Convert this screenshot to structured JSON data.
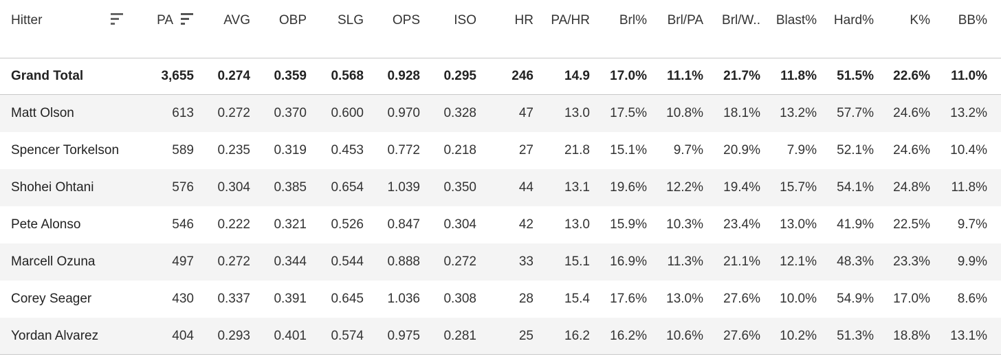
{
  "table": {
    "columns": [
      "Hitter",
      "PA",
      "AVG",
      "OBP",
      "SLG",
      "OPS",
      "ISO",
      "HR",
      "PA/HR",
      "Brl%",
      "Brl/PA",
      "Brl/W..",
      "Blast%",
      "Hard%",
      "K%",
      "BB%"
    ],
    "total": [
      "Grand Total",
      "3,655",
      "0.274",
      "0.359",
      "0.568",
      "0.928",
      "0.295",
      "246",
      "14.9",
      "17.0%",
      "11.1%",
      "21.7%",
      "11.8%",
      "51.5%",
      "22.6%",
      "11.0%"
    ],
    "rows": [
      [
        "Matt Olson",
        "613",
        "0.272",
        "0.370",
        "0.600",
        "0.970",
        "0.328",
        "47",
        "13.0",
        "17.5%",
        "10.8%",
        "18.1%",
        "13.2%",
        "57.7%",
        "24.6%",
        "13.2%"
      ],
      [
        "Spencer Torkelson",
        "589",
        "0.235",
        "0.319",
        "0.453",
        "0.772",
        "0.218",
        "27",
        "21.8",
        "15.1%",
        "9.7%",
        "20.9%",
        "7.9%",
        "52.1%",
        "24.6%",
        "10.4%"
      ],
      [
        "Shohei Ohtani",
        "576",
        "0.304",
        "0.385",
        "0.654",
        "1.039",
        "0.350",
        "44",
        "13.1",
        "19.6%",
        "12.2%",
        "19.4%",
        "15.7%",
        "54.1%",
        "24.8%",
        "11.8%"
      ],
      [
        "Pete Alonso",
        "546",
        "0.222",
        "0.321",
        "0.526",
        "0.847",
        "0.304",
        "42",
        "13.0",
        "15.9%",
        "10.3%",
        "23.4%",
        "13.0%",
        "41.9%",
        "22.5%",
        "9.7%"
      ],
      [
        "Marcell Ozuna",
        "497",
        "0.272",
        "0.344",
        "0.544",
        "0.888",
        "0.272",
        "33",
        "15.1",
        "16.9%",
        "11.3%",
        "21.1%",
        "12.1%",
        "48.3%",
        "23.3%",
        "9.9%"
      ],
      [
        "Corey Seager",
        "430",
        "0.337",
        "0.391",
        "0.645",
        "1.036",
        "0.308",
        "28",
        "15.4",
        "17.6%",
        "13.0%",
        "27.6%",
        "10.0%",
        "54.9%",
        "17.0%",
        "8.6%"
      ],
      [
        "Yordan Alvarez",
        "404",
        "0.293",
        "0.401",
        "0.574",
        "0.975",
        "0.281",
        "25",
        "16.2",
        "16.2%",
        "10.6%",
        "27.6%",
        "10.2%",
        "51.3%",
        "18.8%",
        "13.1%"
      ]
    ]
  }
}
